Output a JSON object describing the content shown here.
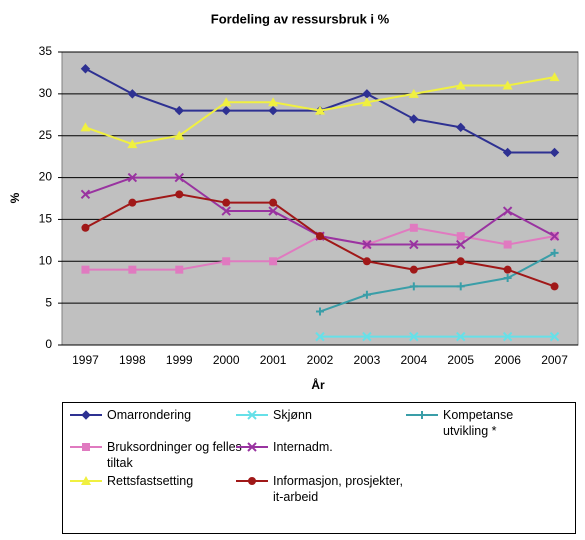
{
  "chart_data": {
    "type": "line",
    "title": "Fordeling av ressursbruk i %",
    "x_label": "År",
    "y_label": "%",
    "categories": [
      "1997",
      "1998",
      "1999",
      "2000",
      "2001",
      "2002",
      "2003",
      "2004",
      "2005",
      "2006",
      "2007"
    ],
    "ylim": [
      0,
      35
    ],
    "yticks": [
      0,
      5,
      10,
      15,
      20,
      25,
      30,
      35
    ],
    "grid": true,
    "series": [
      {
        "name": "Omarrondering",
        "color": "#2e3192",
        "marker": "diamond",
        "values": [
          33,
          30,
          28,
          28,
          28,
          28,
          30,
          27,
          26,
          23,
          23
        ]
      },
      {
        "name": "Skjønn",
        "color": "#66e0e8",
        "marker": "x",
        "values": [
          null,
          null,
          null,
          null,
          null,
          1,
          1,
          1,
          1,
          1,
          1
        ]
      },
      {
        "name": "Kompetanse utvikling *",
        "color": "#3a9ea8",
        "marker": "plus",
        "values": [
          null,
          null,
          null,
          null,
          null,
          4,
          6,
          7,
          7,
          8,
          11
        ]
      },
      {
        "name": "Bruksordninger og felles tiltak",
        "color": "#e07ac0",
        "marker": "square",
        "values": [
          9,
          9,
          9,
          10,
          10,
          13,
          12,
          14,
          13,
          12,
          13
        ]
      },
      {
        "name": "Internadm.",
        "color": "#9933a0",
        "marker": "x",
        "values": [
          18,
          20,
          20,
          16,
          16,
          13,
          12,
          12,
          12,
          16,
          13
        ]
      },
      {
        "name": "Rettsfastsetting",
        "color": "#f0f040",
        "marker": "triangle",
        "values": [
          26,
          24,
          25,
          29,
          29,
          28,
          29,
          30,
          31,
          31,
          32
        ]
      },
      {
        "name": "Informasjon, prosjekter, it-arbeid",
        "color": "#a01818",
        "marker": "circle",
        "values": [
          14,
          17,
          18,
          17,
          17,
          13,
          10,
          9,
          10,
          9,
          7
        ]
      }
    ]
  }
}
